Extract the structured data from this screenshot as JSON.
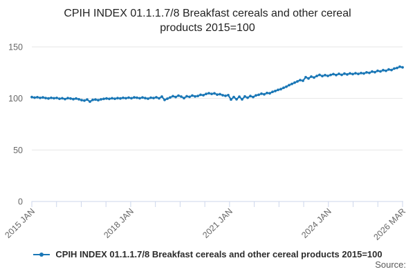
{
  "title_lines": [
    "CPIH INDEX 01.1.1.7/8 Breakfast cereals and other cereal",
    "products 2015=100"
  ],
  "legend": {
    "label": "CPIH INDEX 01.1.1.7/8 Breakfast cereals and other cereal products 2015=100"
  },
  "source_label": "Source:",
  "colors": {
    "line": "#1a77b6",
    "grid": "#e6e6e6",
    "axis": "#ccd6eb",
    "tick_label": "#666666",
    "title": "#222222",
    "legend_text": "#2b2b2b",
    "source_text": "#595959"
  },
  "chart_data": {
    "type": "line",
    "title": "CPIH INDEX 01.1.1.7/8 Breakfast cereals and other cereal products 2015=100",
    "frequency": "monthly",
    "x_start": "2015 JAN",
    "x_end": "2026 MAR",
    "ylim": [
      0,
      150
    ],
    "y_ticks": [
      0,
      50,
      100,
      150
    ],
    "x_tick_count": 16,
    "x_tick_labels": [
      {
        "tick": 0,
        "label": "2015 JAN"
      },
      {
        "tick": 4,
        "label": "2018 JAN"
      },
      {
        "tick": 8,
        "label": "2021 JAN"
      },
      {
        "tick": 12,
        "label": "2024 JAN"
      },
      {
        "tick": 15,
        "label": "2026 MAR"
      }
    ],
    "grid": "horizontal-only",
    "legend_position": "bottom",
    "marker": "circle",
    "series": [
      {
        "name": "CPIH INDEX 01.1.1.7/8 Breakfast cereals and other cereal products 2015=100",
        "values": [
          101.3,
          100.8,
          101.2,
          100.5,
          101.0,
          100.4,
          100.0,
          100.6,
          100.2,
          100.5,
          99.7,
          100.2,
          99.4,
          100.3,
          99.9,
          99.3,
          99.9,
          99.2,
          98.4,
          97.9,
          98.9,
          96.9,
          98.6,
          98.9,
          98.3,
          99.1,
          99.6,
          100.0,
          99.6,
          100.2,
          99.7,
          100.3,
          100.0,
          100.6,
          100.2,
          100.8,
          100.2,
          101.0,
          100.7,
          100.2,
          100.9,
          100.3,
          99.8,
          100.7,
          100.4,
          101.1,
          100.1,
          101.8,
          98.6,
          99.8,
          100.9,
          102.2,
          101.4,
          102.7,
          101.8,
          100.3,
          102.1,
          101.5,
          102.8,
          101.9,
          102.4,
          103.5,
          103.1,
          104.4,
          105.1,
          104.4,
          104.9,
          103.7,
          104.1,
          103.1,
          102.5,
          103.2,
          99.0,
          101.4,
          99.2,
          101.7,
          99.1,
          101.9,
          100.7,
          102.3,
          101.4,
          102.9,
          103.5,
          104.6,
          104.0,
          105.3,
          105.0,
          106.4,
          107.2,
          108.3,
          109.0,
          110.3,
          111.4,
          112.9,
          114.1,
          115.3,
          116.5,
          117.8,
          117.2,
          120.6,
          119.4,
          121.2,
          120.3,
          121.8,
          122.9,
          121.7,
          122.6,
          121.9,
          122.8,
          123.6,
          122.7,
          123.9,
          122.9,
          124.1,
          123.3,
          124.3,
          123.6,
          124.5,
          123.8,
          124.6,
          124.2,
          125.3,
          124.8,
          126.1,
          125.5,
          126.8,
          126.2,
          127.4,
          126.8,
          128.1,
          127.6,
          129.0,
          129.6,
          130.8,
          130.2
        ]
      }
    ]
  }
}
